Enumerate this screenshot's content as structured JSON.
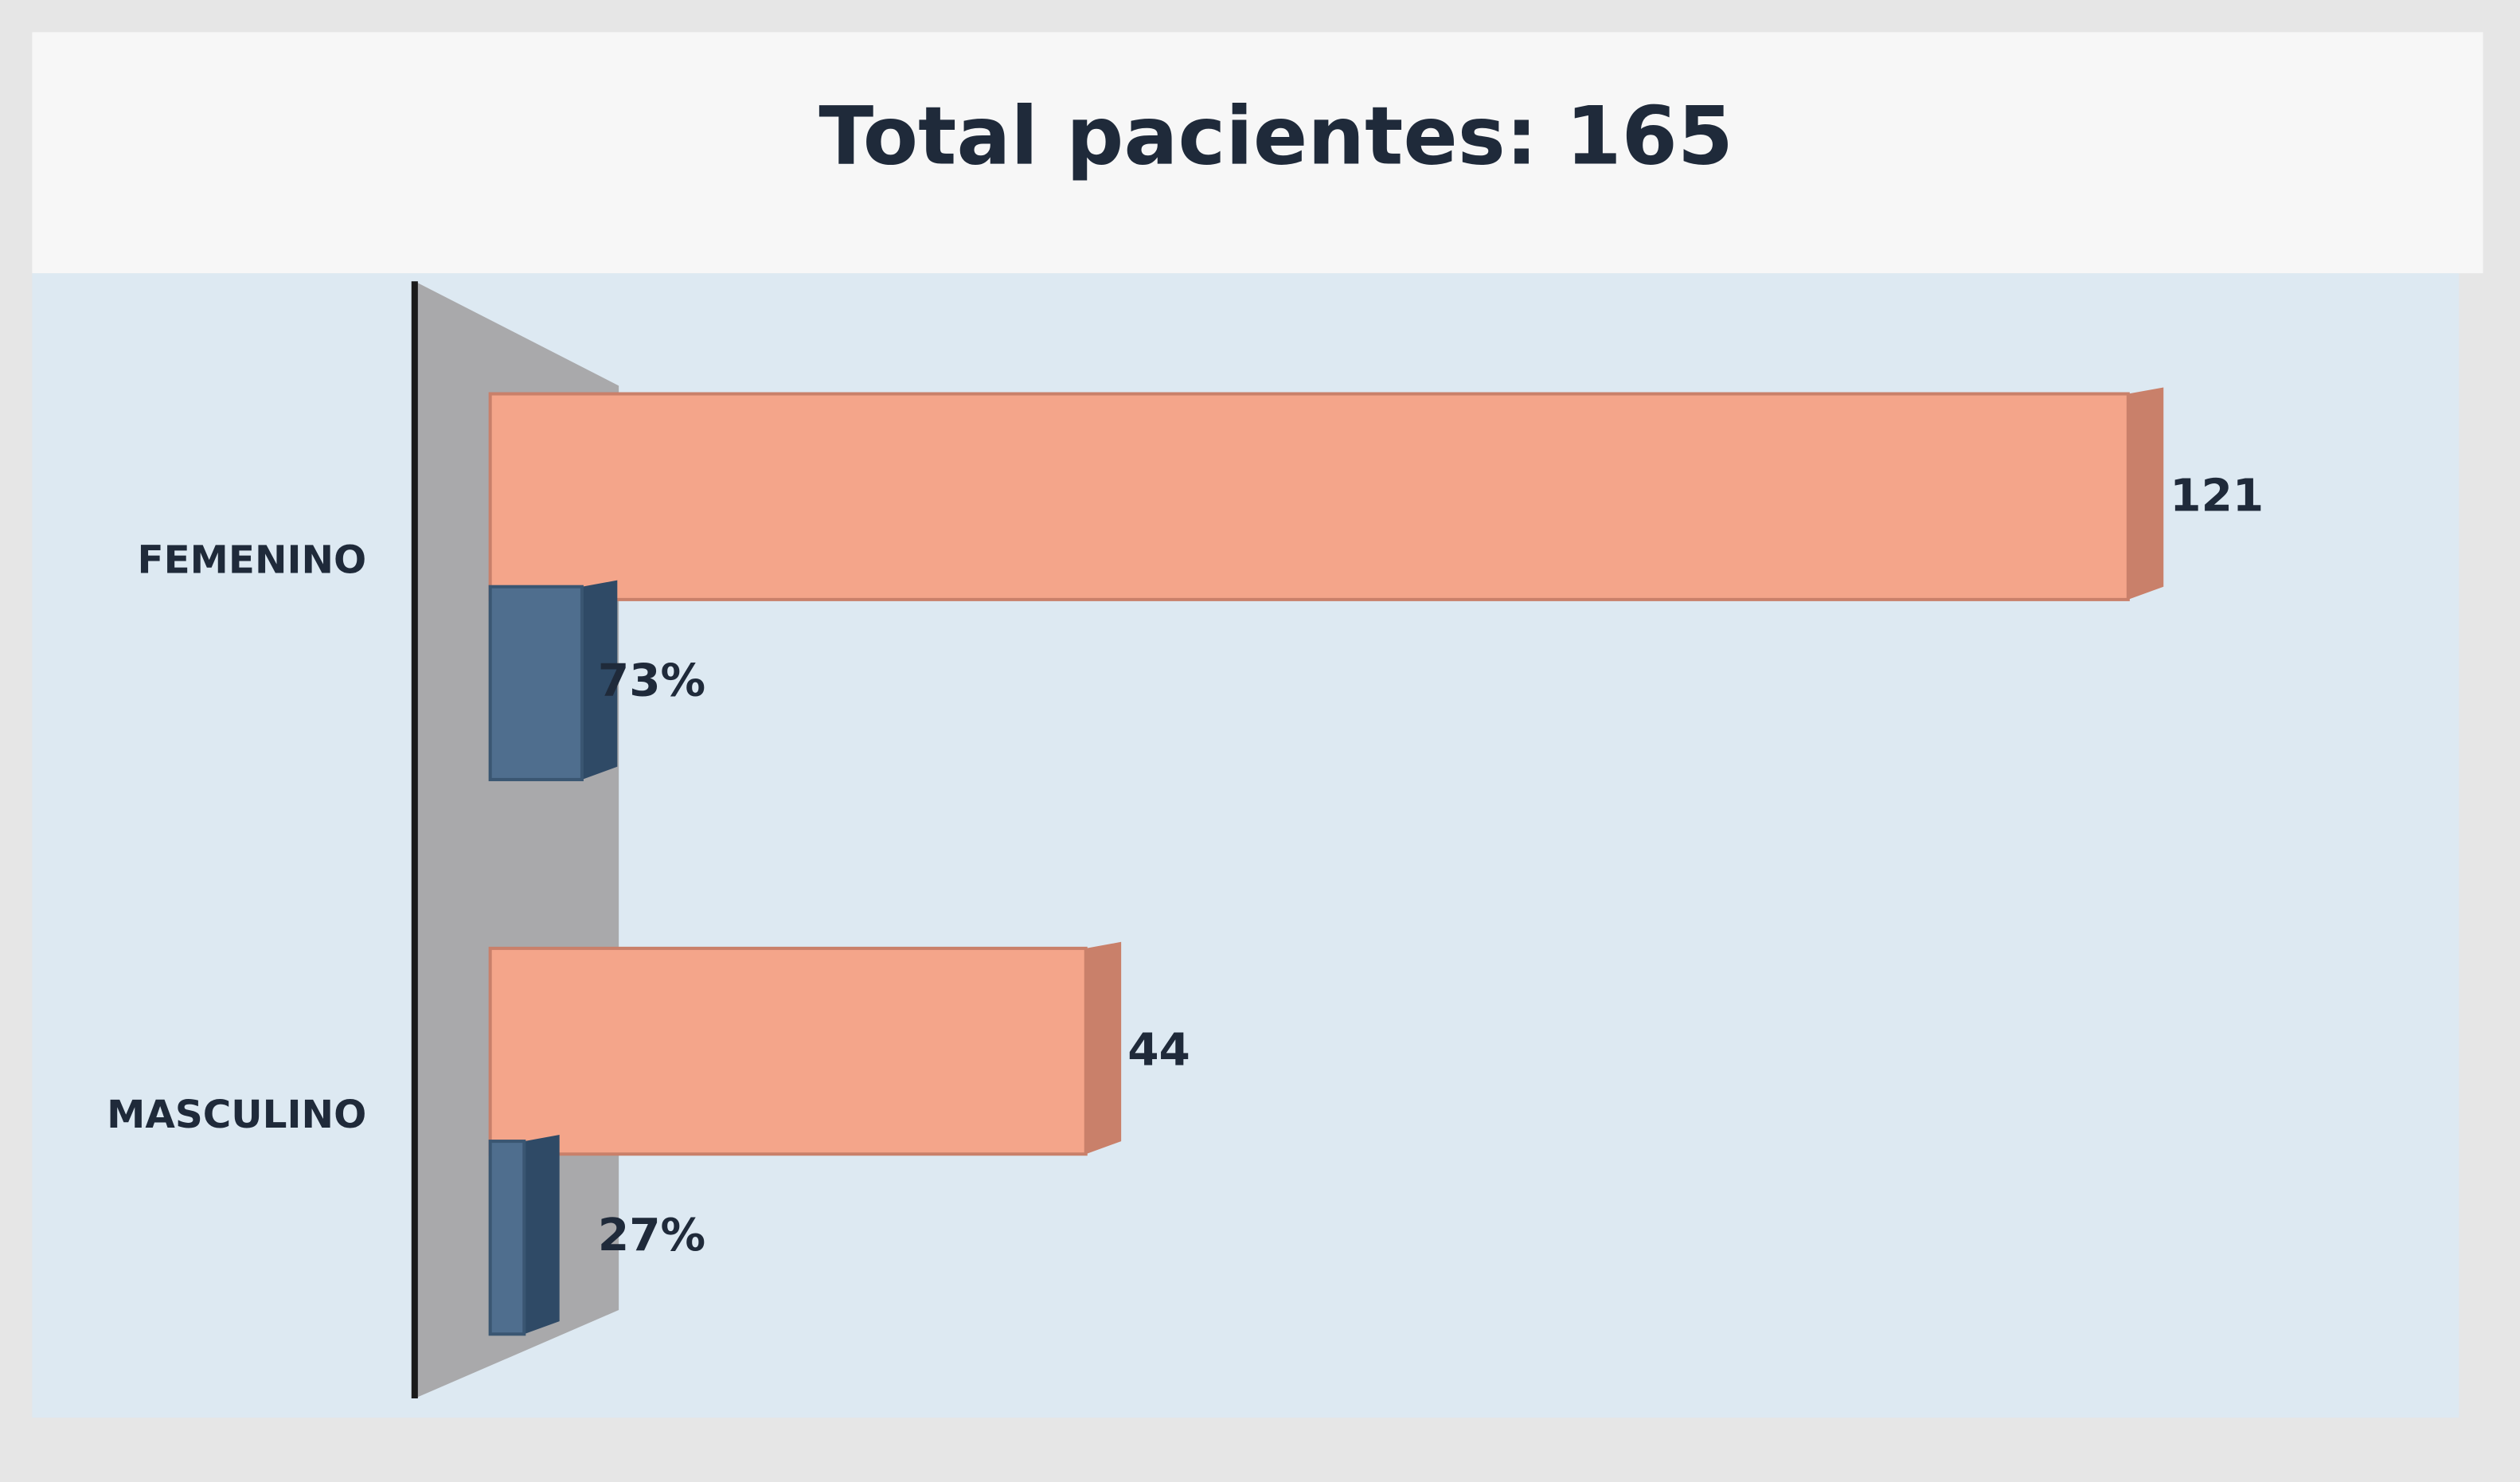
{
  "chart_data": {
    "type": "hbar3d",
    "title": "Total pacientes: 165",
    "categories": [
      "FEMENINO",
      "MASCULINO"
    ],
    "series": [
      {
        "color": "#f4a58a",
        "values": [
          121,
          44
        ]
      },
      {
        "color": "#4f6e8e",
        "values": [
          73,
          27
        ],
        "value_labels": [
          "73%",
          "27%"
        ],
        "axis": "x2"
      }
    ],
    "xlim": [
      0,
      130
    ],
    "x2lim": [
      0,
      1400
    ]
  }
}
